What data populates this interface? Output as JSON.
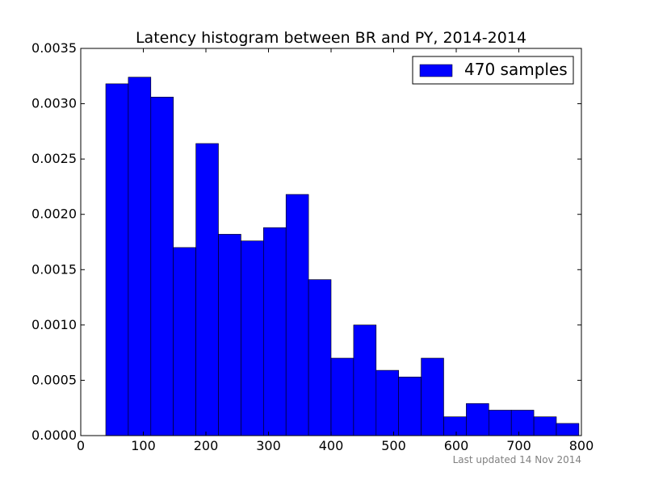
{
  "chart_data": {
    "type": "bar",
    "title": "Latency histogram between BR and PY, 2014-2014",
    "xlabel": "",
    "ylabel": "",
    "xlim": [
      0,
      800
    ],
    "ylim": [
      0,
      0.0035
    ],
    "x_ticks": [
      0,
      100,
      200,
      300,
      400,
      500,
      600,
      700,
      800
    ],
    "x_tick_labels": [
      "0",
      "100",
      "200",
      "300",
      "400",
      "500",
      "600",
      "700",
      "800"
    ],
    "y_ticks": [
      0,
      0.0005,
      0.001,
      0.0015,
      0.002,
      0.0025,
      0.003,
      0.0035
    ],
    "y_tick_labels": [
      "0.0000",
      "0.0005",
      "0.0010",
      "0.0015",
      "0.0020",
      "0.0025",
      "0.0030",
      "0.0035"
    ],
    "grid": false,
    "legend_position": "top-right",
    "series": [
      {
        "name": "470 samples",
        "color": "#0000ff",
        "bins": [
          {
            "x0": 40,
            "x1": 76,
            "value": 0.00318
          },
          {
            "x0": 76,
            "x1": 112,
            "value": 0.00324
          },
          {
            "x0": 112,
            "x1": 148,
            "value": 0.00306
          },
          {
            "x0": 148,
            "x1": 184,
            "value": 0.0017
          },
          {
            "x0": 184,
            "x1": 220,
            "value": 0.00264
          },
          {
            "x0": 220,
            "x1": 256,
            "value": 0.00182
          },
          {
            "x0": 256,
            "x1": 292,
            "value": 0.00176
          },
          {
            "x0": 292,
            "x1": 328,
            "value": 0.00188
          },
          {
            "x0": 328,
            "x1": 364,
            "value": 0.00218
          },
          {
            "x0": 364,
            "x1": 400,
            "value": 0.00141
          },
          {
            "x0": 400,
            "x1": 436,
            "value": 0.0007
          },
          {
            "x0": 436,
            "x1": 472,
            "value": 0.001
          },
          {
            "x0": 472,
            "x1": 508,
            "value": 0.00059
          },
          {
            "x0": 508,
            "x1": 544,
            "value": 0.00053
          },
          {
            "x0": 544,
            "x1": 580,
            "value": 0.0007
          },
          {
            "x0": 580,
            "x1": 616,
            "value": 0.00017
          },
          {
            "x0": 616,
            "x1": 652,
            "value": 0.00029
          },
          {
            "x0": 652,
            "x1": 688,
            "value": 0.00023
          },
          {
            "x0": 688,
            "x1": 724,
            "value": 0.00023
          },
          {
            "x0": 724,
            "x1": 760,
            "value": 0.00017
          },
          {
            "x0": 760,
            "x1": 796,
            "value": 0.00011
          }
        ]
      }
    ]
  },
  "footnote": "Last updated 14 Nov 2014"
}
